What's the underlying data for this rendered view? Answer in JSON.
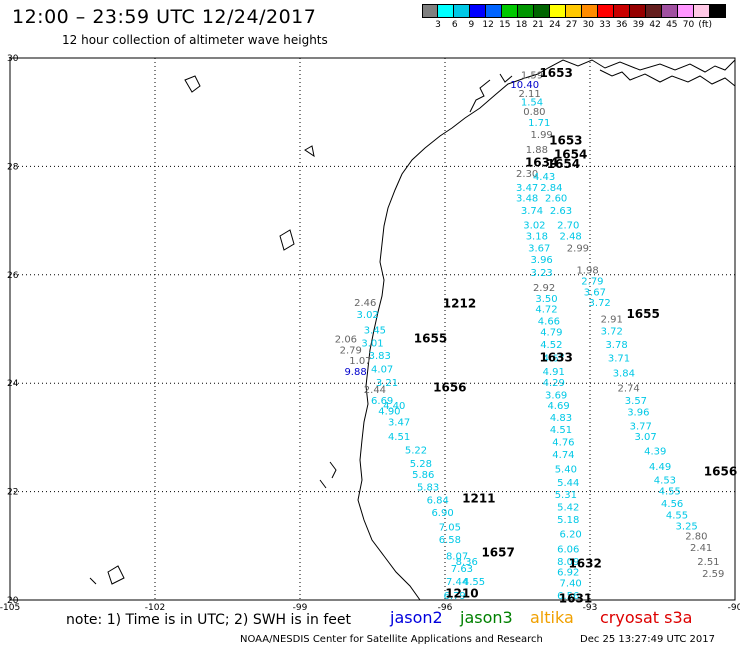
{
  "title": "12:00 – 23:59 UTC 12/24/2017",
  "subtitle": "12 hour collection of altimeter wave heights",
  "scale": {
    "colors": [
      "#7f7f7f",
      "#00ffff",
      "#00c8e6",
      "#0000ff",
      "#0064ff",
      "#00c800",
      "#009600",
      "#006400",
      "#ffff00",
      "#ffc800",
      "#ff8c00",
      "#ff0000",
      "#c80000",
      "#960000",
      "#641e1e",
      "#a050a0",
      "#ff96ff",
      "#ffc8e6",
      "#000000"
    ],
    "labels": [
      "3",
      "6",
      "9",
      "12",
      "15",
      "18",
      "21",
      "24",
      "27",
      "30",
      "33",
      "36",
      "39",
      "42",
      "45",
      "70",
      "(ft)"
    ]
  },
  "axes": {
    "x_ticks": [
      "-105",
      "-102",
      "-99",
      "-96",
      "-93",
      "-90"
    ],
    "y_ticks": [
      "30",
      "28",
      "26",
      "24",
      "22",
      "20"
    ]
  },
  "tracks": [
    {
      "label": "1212",
      "color": "#f0a000",
      "lon": -95.7,
      "lat": 25.4
    },
    {
      "label": "1655",
      "color": "#0000cc",
      "lon": -96.3,
      "lat": 24.75
    },
    {
      "label": "1656",
      "color": "#0000cc",
      "lon": -95.9,
      "lat": 23.85
    },
    {
      "label": "1211",
      "color": "#f0a000",
      "lon": -95.3,
      "lat": 21.8
    },
    {
      "label": "1657",
      "color": "#0000cc",
      "lon": -94.9,
      "lat": 20.8
    },
    {
      "label": "1210",
      "color": "#f0a000",
      "lon": -95.65,
      "lat": 20.05
    },
    {
      "label": "1653",
      "color": "#007000",
      "lon": -93.7,
      "lat": 29.65
    },
    {
      "label": "1653",
      "color": "#007000",
      "lon": -93.5,
      "lat": 28.4
    },
    {
      "label": "1654",
      "color": "#007000",
      "lon": -93.4,
      "lat": 28.15
    },
    {
      "label": "1654",
      "color": "#007000",
      "lon": -93.55,
      "lat": 27.97
    },
    {
      "label": "1634",
      "color": "#dd0000",
      "lon": -94.0,
      "lat": 28.0
    },
    {
      "label": "1633",
      "color": "#dd0000",
      "lon": -93.7,
      "lat": 24.4
    },
    {
      "label": "1632",
      "color": "#dd0000",
      "lon": -93.1,
      "lat": 20.6
    },
    {
      "label": "1631",
      "color": "#dd0000",
      "lon": -93.3,
      "lat": 19.95
    },
    {
      "label": "1655",
      "color": "#007000",
      "lon": -91.9,
      "lat": 25.2
    },
    {
      "label": "1656",
      "color": "#007000",
      "lon": -90.3,
      "lat": 22.3
    }
  ],
  "points": [
    {
      "v": "2.46",
      "c": "#666666",
      "lon": -97.65,
      "lat": 25.42
    },
    {
      "v": "3.02",
      "c": "#00c8e6",
      "lon": -97.6,
      "lat": 25.2
    },
    {
      "v": "3.45",
      "c": "#00c8e6",
      "lon": -97.45,
      "lat": 24.92
    },
    {
      "v": "2.06",
      "c": "#666666",
      "lon": -98.05,
      "lat": 24.75
    },
    {
      "v": "3.01",
      "c": "#00c8e6",
      "lon": -97.5,
      "lat": 24.68
    },
    {
      "v": "2.79",
      "c": "#666666",
      "lon": -97.95,
      "lat": 24.55
    },
    {
      "v": "3.83",
      "c": "#00c8e6",
      "lon": -97.35,
      "lat": 24.45
    },
    {
      "v": "1.07",
      "c": "#666666",
      "lon": -97.75,
      "lat": 24.35
    },
    {
      "v": "9.88",
      "c": "#0000cc",
      "lon": -97.85,
      "lat": 24.15
    },
    {
      "v": "4.07",
      "c": "#00c8e6",
      "lon": -97.3,
      "lat": 24.2
    },
    {
      "v": "3.21",
      "c": "#00c8e6",
      "lon": -97.2,
      "lat": 23.95
    },
    {
      "v": "2.44",
      "c": "#666666",
      "lon": -97.45,
      "lat": 23.82
    },
    {
      "v": "6.69",
      "c": "#00c8e6",
      "lon": -97.3,
      "lat": 23.62
    },
    {
      "v": "4.40",
      "c": "#00c8e6",
      "lon": -97.05,
      "lat": 23.52
    },
    {
      "v": "4.90",
      "c": "#00c8e6",
      "lon": -97.15,
      "lat": 23.42
    },
    {
      "v": "3.47",
      "c": "#00c8e6",
      "lon": -96.95,
      "lat": 23.22
    },
    {
      "v": "4.51",
      "c": "#00c8e6",
      "lon": -96.95,
      "lat": 22.95
    },
    {
      "v": "5.22",
      "c": "#00c8e6",
      "lon": -96.6,
      "lat": 22.7
    },
    {
      "v": "5.28",
      "c": "#00c8e6",
      "lon": -96.5,
      "lat": 22.45
    },
    {
      "v": "5.86",
      "c": "#00c8e6",
      "lon": -96.45,
      "lat": 22.25
    },
    {
      "v": "5.83",
      "c": "#00c8e6",
      "lon": -96.35,
      "lat": 22.02
    },
    {
      "v": "6.84",
      "c": "#00c8e6",
      "lon": -96.15,
      "lat": 21.78
    },
    {
      "v": "6.90",
      "c": "#00c8e6",
      "lon": -96.05,
      "lat": 21.55
    },
    {
      "v": "7.05",
      "c": "#00c8e6",
      "lon": -95.9,
      "lat": 21.28
    },
    {
      "v": "6.58",
      "c": "#00c8e6",
      "lon": -95.9,
      "lat": 21.05
    },
    {
      "v": "8.07",
      "c": "#00c8e6",
      "lon": -95.75,
      "lat": 20.75
    },
    {
      "v": "8.36",
      "c": "#00c8e6",
      "lon": -95.55,
      "lat": 20.65
    },
    {
      "v": "7.63",
      "c": "#00c8e6",
      "lon": -95.65,
      "lat": 20.52
    },
    {
      "v": "7.44",
      "c": "#00c8e6",
      "lon": -95.75,
      "lat": 20.28
    },
    {
      "v": "4.55",
      "c": "#00c8e6",
      "lon": -95.4,
      "lat": 20.28
    },
    {
      "v": "6.79",
      "c": "#00c8e6",
      "lon": -95.8,
      "lat": 20.02
    },
    {
      "v": "1.59",
      "c": "#666666",
      "lon": -94.2,
      "lat": 29.62
    },
    {
      "v": "10.40",
      "c": "#0000cc",
      "lon": -94.35,
      "lat": 29.45
    },
    {
      "v": "2.11",
      "c": "#666666",
      "lon": -94.25,
      "lat": 29.28
    },
    {
      "v": "1.54",
      "c": "#00c8e6",
      "lon": -94.2,
      "lat": 29.12
    },
    {
      "v": "0.80",
      "c": "#666666",
      "lon": -94.15,
      "lat": 28.95
    },
    {
      "v": "1.71",
      "c": "#00c8e6",
      "lon": -94.05,
      "lat": 28.75
    },
    {
      "v": "1.99",
      "c": "#666666",
      "lon": -94.0,
      "lat": 28.52
    },
    {
      "v": "1.88",
      "c": "#666666",
      "lon": -94.1,
      "lat": 28.25
    },
    {
      "v": "2.30",
      "c": "#666666",
      "lon": -94.3,
      "lat": 27.8
    },
    {
      "v": "4.43",
      "c": "#00c8e6",
      "lon": -93.95,
      "lat": 27.75
    },
    {
      "v": "3.47",
      "c": "#00c8e6",
      "lon": -94.3,
      "lat": 27.55
    },
    {
      "v": "2.84",
      "c": "#00c8e6",
      "lon": -93.8,
      "lat": 27.55
    },
    {
      "v": "3.48",
      "c": "#00c8e6",
      "lon": -94.3,
      "lat": 27.35
    },
    {
      "v": "2.60",
      "c": "#00c8e6",
      "lon": -93.7,
      "lat": 27.35
    },
    {
      "v": "3.74",
      "c": "#00c8e6",
      "lon": -94.2,
      "lat": 27.12
    },
    {
      "v": "2.63",
      "c": "#00c8e6",
      "lon": -93.6,
      "lat": 27.12
    },
    {
      "v": "3.02",
      "c": "#00c8e6",
      "lon": -94.15,
      "lat": 26.85
    },
    {
      "v": "2.70",
      "c": "#00c8e6",
      "lon": -93.45,
      "lat": 26.85
    },
    {
      "v": "3.18",
      "c": "#00c8e6",
      "lon": -94.1,
      "lat": 26.65
    },
    {
      "v": "2.48",
      "c": "#00c8e6",
      "lon": -93.4,
      "lat": 26.65
    },
    {
      "v": "3.67",
      "c": "#00c8e6",
      "lon": -94.05,
      "lat": 26.43
    },
    {
      "v": "2.99",
      "c": "#666666",
      "lon": -93.25,
      "lat": 26.43
    },
    {
      "v": "3.96",
      "c": "#00c8e6",
      "lon": -94.0,
      "lat": 26.22
    },
    {
      "v": "3.23",
      "c": "#00c8e6",
      "lon": -94.0,
      "lat": 25.98
    },
    {
      "v": "1.98",
      "c": "#666666",
      "lon": -93.05,
      "lat": 26.02
    },
    {
      "v": "2.92",
      "c": "#666666",
      "lon": -93.95,
      "lat": 25.7
    },
    {
      "v": "2.79",
      "c": "#00c8e6",
      "lon": -92.95,
      "lat": 25.82
    },
    {
      "v": "3.50",
      "c": "#00c8e6",
      "lon": -93.9,
      "lat": 25.5
    },
    {
      "v": "3.67",
      "c": "#00c8e6",
      "lon": -92.9,
      "lat": 25.62
    },
    {
      "v": "4.72",
      "c": "#00c8e6",
      "lon": -93.9,
      "lat": 25.3
    },
    {
      "v": "3.72",
      "c": "#00c8e6",
      "lon": -92.8,
      "lat": 25.42
    },
    {
      "v": "4.66",
      "c": "#00c8e6",
      "lon": -93.85,
      "lat": 25.08
    },
    {
      "v": "2.91",
      "c": "#666666",
      "lon": -92.55,
      "lat": 25.12
    },
    {
      "v": "4.79",
      "c": "#00c8e6",
      "lon": -93.8,
      "lat": 24.88
    },
    {
      "v": "3.72",
      "c": "#00c8e6",
      "lon": -92.55,
      "lat": 24.9
    },
    {
      "v": "4.52",
      "c": "#00c8e6",
      "lon": -93.8,
      "lat": 24.65
    },
    {
      "v": "3.78",
      "c": "#00c8e6",
      "lon": -92.45,
      "lat": 24.65
    },
    {
      "v": "4.67",
      "c": "#00c8e6",
      "lon": -93.75,
      "lat": 24.4
    },
    {
      "v": "3.71",
      "c": "#00c8e6",
      "lon": -92.4,
      "lat": 24.4
    },
    {
      "v": "4.91",
      "c": "#00c8e6",
      "lon": -93.75,
      "lat": 24.15
    },
    {
      "v": "3.84",
      "c": "#00c8e6",
      "lon": -92.3,
      "lat": 24.12
    },
    {
      "v": "4.29",
      "c": "#00c8e6",
      "lon": -93.75,
      "lat": 23.95
    },
    {
      "v": "2.74",
      "c": "#666666",
      "lon": -92.2,
      "lat": 23.85
    },
    {
      "v": "3.69",
      "c": "#00c8e6",
      "lon": -93.7,
      "lat": 23.72
    },
    {
      "v": "3.57",
      "c": "#00c8e6",
      "lon": -92.05,
      "lat": 23.62
    },
    {
      "v": "4.69",
      "c": "#00c8e6",
      "lon": -93.65,
      "lat": 23.52
    },
    {
      "v": "3.96",
      "c": "#00c8e6",
      "lon": -92.0,
      "lat": 23.4
    },
    {
      "v": "4.83",
      "c": "#00c8e6",
      "lon": -93.6,
      "lat": 23.3
    },
    {
      "v": "3.77",
      "c": "#00c8e6",
      "lon": -91.95,
      "lat": 23.15
    },
    {
      "v": "4.51",
      "c": "#00c8e6",
      "lon": -93.6,
      "lat": 23.08
    },
    {
      "v": "3.07",
      "c": "#00c8e6",
      "lon": -91.85,
      "lat": 22.95
    },
    {
      "v": "4.76",
      "c": "#00c8e6",
      "lon": -93.55,
      "lat": 22.85
    },
    {
      "v": "4.74",
      "c": "#00c8e6",
      "lon": -93.55,
      "lat": 22.62
    },
    {
      "v": "4.39",
      "c": "#00c8e6",
      "lon": -91.65,
      "lat": 22.68
    },
    {
      "v": "5.40",
      "c": "#00c8e6",
      "lon": -93.5,
      "lat": 22.35
    },
    {
      "v": "4.49",
      "c": "#00c8e6",
      "lon": -91.55,
      "lat": 22.4
    },
    {
      "v": "5.44",
      "c": "#00c8e6",
      "lon": -93.45,
      "lat": 22.1
    },
    {
      "v": "4.53",
      "c": "#00c8e6",
      "lon": -91.45,
      "lat": 22.15
    },
    {
      "v": "5.31",
      "c": "#00c8e6",
      "lon": -93.5,
      "lat": 21.88
    },
    {
      "v": "4.55",
      "c": "#00c8e6",
      "lon": -91.35,
      "lat": 21.95
    },
    {
      "v": "5.42",
      "c": "#00c8e6",
      "lon": -93.45,
      "lat": 21.65
    },
    {
      "v": "4.56",
      "c": "#00c8e6",
      "lon": -91.3,
      "lat": 21.72
    },
    {
      "v": "5.18",
      "c": "#00c8e6",
      "lon": -93.45,
      "lat": 21.42
    },
    {
      "v": "4.55",
      "c": "#00c8e6",
      "lon": -91.2,
      "lat": 21.5
    },
    {
      "v": "6.20",
      "c": "#00c8e6",
      "lon": -93.4,
      "lat": 21.15
    },
    {
      "v": "3.25",
      "c": "#00c8e6",
      "lon": -91.0,
      "lat": 21.3
    },
    {
      "v": "6.06",
      "c": "#00c8e6",
      "lon": -93.45,
      "lat": 20.88
    },
    {
      "v": "2.80",
      "c": "#666666",
      "lon": -90.8,
      "lat": 21.12
    },
    {
      "v": "8.09",
      "c": "#00c8e6",
      "lon": -93.45,
      "lat": 20.65
    },
    {
      "v": "2.41",
      "c": "#666666",
      "lon": -90.7,
      "lat": 20.9
    },
    {
      "v": "6.92",
      "c": "#00c8e6",
      "lon": -93.45,
      "lat": 20.45
    },
    {
      "v": "2.51",
      "c": "#666666",
      "lon": -90.55,
      "lat": 20.65
    },
    {
      "v": "7.40",
      "c": "#00c8e6",
      "lon": -93.4,
      "lat": 20.25
    },
    {
      "v": "2.59",
      "c": "#666666",
      "lon": -90.45,
      "lat": 20.42
    },
    {
      "v": "6.56",
      "c": "#00c8e6",
      "lon": -93.45,
      "lat": 20.02
    }
  ],
  "footer": {
    "note": "note: 1) Time is in UTC; 2) SWH is in feet",
    "satellites": [
      {
        "name": "jason2",
        "color": "#0000dd"
      },
      {
        "name": "jason3",
        "color": "#008000"
      },
      {
        "name": "altika",
        "color": "#f0a000"
      },
      {
        "name": "cryosat s3a",
        "color": "#dd0000"
      }
    ],
    "credit": "NOAA/NESDIS Center for Satellite Applications and Research",
    "timestamp": "Dec 25 13:27:49 UTC 2017"
  }
}
